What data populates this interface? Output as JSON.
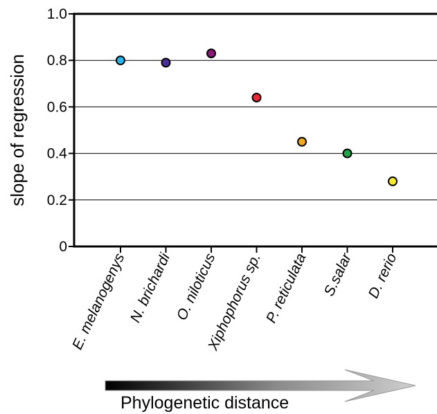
{
  "chart_data": {
    "type": "scatter",
    "categories": [
      "E. melanogenys",
      "N. brichardi",
      "O. niloticus",
      "Xiphophorus sp.",
      "P. reticulata",
      "S.salar",
      "D. rerio"
    ],
    "values": [
      0.8,
      0.79,
      0.83,
      0.64,
      0.45,
      0.4,
      0.28
    ],
    "point_colors": [
      "#29b6ea",
      "#4a2f9a",
      "#8a1a78",
      "#e8273a",
      "#f0a921",
      "#1ea54a",
      "#f7ea2a"
    ],
    "ylabel": "slope of regression",
    "xlabel": "Phylogenetic distance",
    "ylim": [
      0,
      1.0
    ],
    "yticks": [
      0,
      0.2,
      0.4,
      0.6,
      0.8,
      1.0
    ],
    "ytick_labels": [
      "0",
      "0.2",
      "0.4",
      "0.6",
      "0.8",
      "1.0"
    ],
    "grid": true,
    "arrow": "gradient black-to-gray pointing right"
  }
}
